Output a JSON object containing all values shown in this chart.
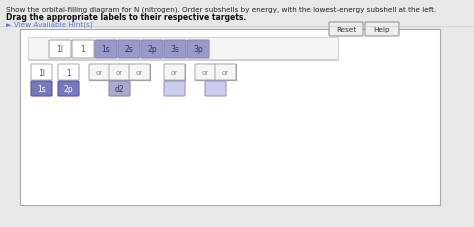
{
  "title": "Show the orbital-filling diagram for N (nitrogen). Order subshells by energy, with the lowest-energy subshell at the left.",
  "subtitle": "Drag the appropriate labels to their respective targets.",
  "hint": "► View Available Hint(s)",
  "white_labels": [
    "1l",
    "1"
  ],
  "blue_labels": [
    "1s",
    "2s",
    "2p",
    "3s",
    "3p"
  ],
  "blue_box_color": "#9999cc",
  "blue_box_border": "#8888bb",
  "white_box_color": "#ffffff",
  "white_box_border": "#aaaaaa",
  "panel_bg": "#ffffff",
  "panel_border": "#aaaaaa",
  "outer_bg": "#e8e8e8",
  "inner_top_bg": "#f5f5f5",
  "inner_top_border": "#cccccc",
  "inner_bottom_bg": "#ffffff",
  "btn_bg": "#eeeeee",
  "btn_border": "#888888",
  "orbital_bg": "#f5f5f5",
  "orbital_border": "#aaaaaa",
  "orbital_text": "#888888",
  "filled_lbl_bg": "#7777bb",
  "filled_lbl_border": "#5555aa",
  "filled_lbl_text": "#ffffff",
  "d2_lbl_bg": "#aaaacc",
  "d2_lbl_border": "#8888aa",
  "d2_lbl_text": "#333366",
  "empty_lbl_bg": "#ccccee",
  "empty_lbl_border": "#9999bb"
}
